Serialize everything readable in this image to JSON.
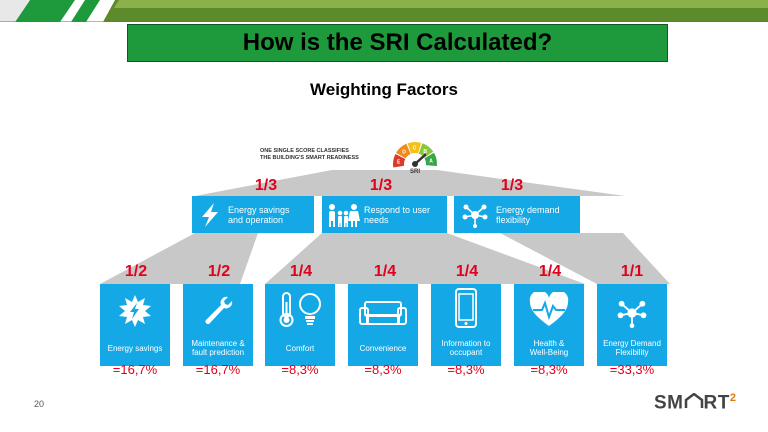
{
  "title": "How is the SRI Calculated?",
  "subtitle": "Weighting Factors",
  "sri_gauge": {
    "caption_line1": "ONE SINGLE SCORE CLASSIFIES",
    "caption_line2": "THE BUILDING'S SMART READINESS",
    "label": "SRI",
    "segments": [
      "E",
      "D",
      "C",
      "B",
      "A"
    ],
    "segment_colors": [
      "#d83b2a",
      "#f08a1a",
      "#f2c21a",
      "#8cc63f",
      "#3aa64a"
    ]
  },
  "colors": {
    "box": "#14a9e6",
    "accent_red": "#e2001a",
    "title_green": "#1e9a3d",
    "connector": "#c8c8c8"
  },
  "domains": [
    {
      "weight": "1/3",
      "label_line1": "Energy savings",
      "label_line2": "and operation",
      "icon": "lightning-icon"
    },
    {
      "weight": "1/3",
      "label_line1": "Respond to user",
      "label_line2": "needs",
      "icon": "family-icon"
    },
    {
      "weight": "1/3",
      "label_line1": "Energy demand",
      "label_line2": "flexibility",
      "icon": "network-icon"
    }
  ],
  "criteria": [
    {
      "weight": "1/2",
      "label_line1": "Energy savings",
      "label_line2": "",
      "result": "=16,7%",
      "icon": "energy-burst-icon"
    },
    {
      "weight": "1/2",
      "label_line1": "Maintenance &",
      "label_line2": "fault prediction",
      "result": "=16,7%",
      "icon": "wrench-icon"
    },
    {
      "weight": "1/4",
      "label_line1": "Comfort",
      "label_line2": "",
      "result": "=8,3%",
      "icon": "thermometer-bulb-icon"
    },
    {
      "weight": "1/4",
      "label_line1": "Convenience",
      "label_line2": "",
      "result": "=8,3%",
      "icon": "sofa-icon"
    },
    {
      "weight": "1/4",
      "label_line1": "Information to",
      "label_line2": "occupant",
      "result": "=8,3%",
      "icon": "phone-icon"
    },
    {
      "weight": "1/4",
      "label_line1": "Health &",
      "label_line2": "Well-Being",
      "result": "=8,3%",
      "icon": "heart-pulse-icon"
    },
    {
      "weight": "1/1",
      "label_line1": "Energy Demand",
      "label_line2": "Flexibility",
      "result": "=33,3%",
      "icon": "network-icon"
    }
  ],
  "page_number": "20",
  "logo": {
    "text_left": "SM",
    "text_right": "RT",
    "superscript": "2"
  }
}
